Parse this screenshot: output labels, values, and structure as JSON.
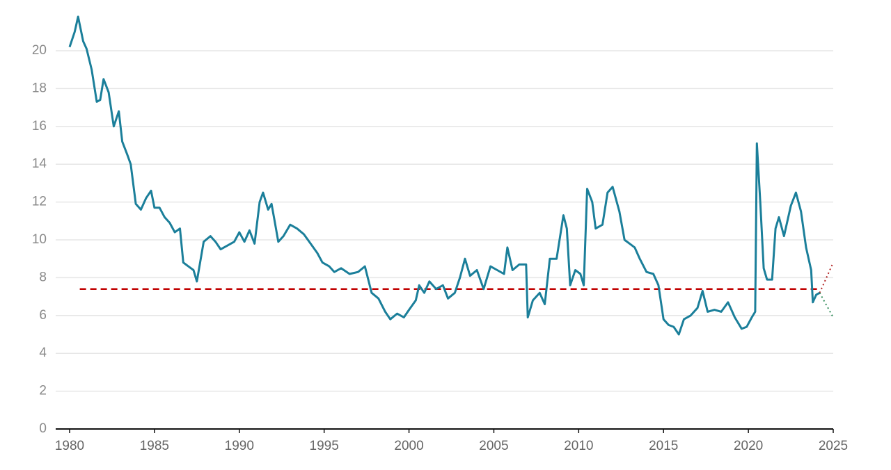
{
  "chart_data": {
    "type": "line",
    "x": [
      1980.0,
      1980.3,
      1980.5,
      1980.8,
      1981.0,
      1981.3,
      1981.6,
      1981.8,
      1982.0,
      1982.3,
      1982.6,
      1982.9,
      1983.1,
      1983.4,
      1983.6,
      1983.9,
      1984.2,
      1984.5,
      1984.8,
      1985.0,
      1985.3,
      1985.6,
      1985.9,
      1986.2,
      1986.5,
      1986.7,
      1987.0,
      1987.3,
      1987.5,
      1987.9,
      1988.3,
      1988.6,
      1988.9,
      1989.3,
      1989.7,
      1990.0,
      1990.3,
      1990.6,
      1990.9,
      1991.2,
      1991.4,
      1991.7,
      1991.9,
      1992.1,
      1992.3,
      1992.6,
      1993.0,
      1993.4,
      1993.8,
      1994.2,
      1994.6,
      1994.9,
      1995.3,
      1995.6,
      1996.0,
      1996.5,
      1997.0,
      1997.4,
      1997.8,
      1998.2,
      1998.6,
      1998.9,
      1999.3,
      1999.7,
      2000.0,
      2000.4,
      2000.6,
      2000.9,
      2001.2,
      2001.6,
      2002.0,
      2002.3,
      2002.7,
      2003.0,
      2003.3,
      2003.6,
      2004.0,
      2004.4,
      2004.8,
      2005.2,
      2005.6,
      2005.8,
      2006.1,
      2006.5,
      2006.9,
      2007.0,
      2007.3,
      2007.7,
      2008.0,
      2008.3,
      2008.7,
      2009.1,
      2009.3,
      2009.5,
      2009.8,
      2010.1,
      2010.3,
      2010.5,
      2010.8,
      2011.0,
      2011.4,
      2011.7,
      2012.0,
      2012.4,
      2012.7,
      2013.0,
      2013.3,
      2013.6,
      2014.0,
      2014.4,
      2014.7,
      2015.0,
      2015.3,
      2015.6,
      2015.9,
      2016.2,
      2016.6,
      2017.0,
      2017.3,
      2017.6,
      2018.0,
      2018.4,
      2018.8,
      2019.2,
      2019.6,
      2019.9,
      2020.2,
      2020.4,
      2020.5,
      2020.7,
      2020.9,
      2021.1,
      2021.4,
      2021.6,
      2021.8,
      2022.1,
      2022.5,
      2022.8,
      2023.1,
      2023.4,
      2023.7,
      2023.8,
      2024.0,
      2024.2
    ],
    "series": [
      {
        "color": "#1b7f9a",
        "values": [
          20.2,
          21.0,
          21.8,
          20.5,
          20.1,
          19.0,
          17.3,
          17.4,
          18.5,
          17.8,
          16.0,
          16.8,
          15.2,
          14.5,
          14.0,
          11.9,
          11.6,
          12.2,
          12.6,
          11.7,
          11.7,
          11.2,
          10.9,
          10.4,
          10.6,
          8.8,
          8.6,
          8.4,
          7.8,
          9.9,
          10.2,
          9.9,
          9.5,
          9.7,
          9.9,
          10.4,
          9.9,
          10.5,
          9.8,
          12.0,
          12.5,
          11.6,
          11.9,
          10.9,
          9.9,
          10.2,
          10.8,
          10.6,
          10.3,
          9.8,
          9.3,
          8.8,
          8.6,
          8.3,
          8.5,
          8.2,
          8.3,
          8.6,
          7.2,
          6.9,
          6.2,
          5.8,
          6.1,
          5.9,
          6.3,
          6.8,
          7.6,
          7.2,
          7.8,
          7.4,
          7.6,
          6.9,
          7.2,
          8.0,
          9.0,
          8.1,
          8.4,
          7.4,
          8.6,
          8.4,
          8.2,
          9.6,
          8.4,
          8.7,
          8.7,
          5.9,
          6.8,
          7.2,
          6.6,
          9.0,
          9.0,
          11.3,
          10.6,
          7.6,
          8.4,
          8.2,
          7.6,
          12.7,
          12.0,
          10.6,
          10.8,
          12.5,
          12.8,
          11.5,
          10.0,
          9.8,
          9.6,
          9.0,
          8.3,
          8.2,
          7.6,
          5.8,
          5.5,
          5.4,
          5.0,
          5.8,
          6.0,
          6.4,
          7.3,
          6.2,
          6.3,
          6.2,
          6.7,
          5.9,
          5.3,
          5.4,
          5.9,
          6.2,
          15.1,
          12.0,
          8.5,
          7.9,
          7.9,
          10.6,
          11.2,
          10.2,
          11.8,
          12.5,
          11.5,
          9.6,
          8.4,
          6.7,
          7.1,
          7.2
        ]
      }
    ],
    "projections": [
      {
        "color": "#b22222",
        "x": [
          2024.2,
          2025.0
        ],
        "values": [
          7.2,
          8.8
        ]
      },
      {
        "color": "#2e8b57",
        "x": [
          2024.2,
          2025.0
        ],
        "values": [
          7.2,
          5.9
        ]
      }
    ],
    "reference_line": {
      "value": 7.4,
      "color": "#c00000",
      "x": [
        1980.6,
        2024.2
      ]
    },
    "xlim": [
      1980,
      2025
    ],
    "xticks": [
      1980,
      1985,
      1990,
      1995,
      2000,
      2005,
      2010,
      2015,
      2020,
      2025
    ],
    "ylim": [
      0,
      22
    ],
    "yticks": [
      0,
      2,
      4,
      6,
      8,
      10,
      12,
      14,
      16,
      18,
      20
    ],
    "grid": true
  }
}
